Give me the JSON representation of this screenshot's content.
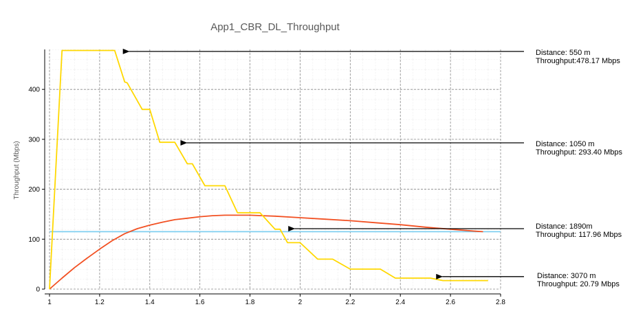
{
  "chart_data": {
    "type": "line",
    "title": "App1_CBR_DL_Throughput",
    "xlabel": "",
    "ylabel": "Throughput (Mbps)",
    "xlim": [
      1,
      2.8
    ],
    "ylim": [
      0,
      480
    ],
    "x_ticks": [
      "1",
      "1.2",
      "1.4",
      "1.6",
      "1.8",
      "2",
      "2.2",
      "2.4",
      "2.6",
      "2.8"
    ],
    "y_ticks": [
      "0",
      "100",
      "200",
      "300",
      "400"
    ],
    "grid": true,
    "series": [
      {
        "color": "#ffd800",
        "points": [
          [
            1.0,
            0
          ],
          [
            1.05,
            478
          ],
          [
            1.26,
            478
          ],
          [
            1.3,
            415
          ],
          [
            1.31,
            413
          ],
          [
            1.37,
            360
          ],
          [
            1.4,
            360
          ],
          [
            1.44,
            294
          ],
          [
            1.5,
            294
          ],
          [
            1.55,
            251
          ],
          [
            1.57,
            251
          ],
          [
            1.62,
            207
          ],
          [
            1.65,
            207
          ],
          [
            1.7,
            207
          ],
          [
            1.75,
            153
          ],
          [
            1.84,
            153
          ],
          [
            1.9,
            120
          ],
          [
            1.92,
            120
          ],
          [
            1.95,
            93
          ],
          [
            2.0,
            93
          ],
          [
            2.07,
            60
          ],
          [
            2.13,
            60
          ],
          [
            2.2,
            40
          ],
          [
            2.32,
            40
          ],
          [
            2.38,
            22
          ],
          [
            2.52,
            22
          ],
          [
            2.57,
            17
          ],
          [
            2.75,
            17
          ]
        ]
      },
      {
        "color": "#f25022",
        "points": [
          [
            1.0,
            0
          ],
          [
            1.05,
            22
          ],
          [
            1.1,
            43
          ],
          [
            1.15,
            62
          ],
          [
            1.2,
            80
          ],
          [
            1.25,
            97
          ],
          [
            1.3,
            111
          ],
          [
            1.35,
            121
          ],
          [
            1.4,
            128
          ],
          [
            1.45,
            134
          ],
          [
            1.5,
            139
          ],
          [
            1.55,
            142
          ],
          [
            1.6,
            145
          ],
          [
            1.65,
            147
          ],
          [
            1.7,
            148
          ],
          [
            1.8,
            148
          ],
          [
            1.85,
            147
          ],
          [
            1.9,
            146
          ],
          [
            2.0,
            143
          ],
          [
            2.1,
            140
          ],
          [
            2.2,
            137
          ],
          [
            2.3,
            133
          ],
          [
            2.4,
            129
          ],
          [
            2.5,
            124
          ],
          [
            2.6,
            120
          ],
          [
            2.7,
            116
          ],
          [
            2.73,
            115
          ]
        ]
      },
      {
        "color": "#7fcff0",
        "points": [
          [
            1.0,
            115
          ],
          [
            2.8,
            115
          ]
        ]
      }
    ],
    "annotations": [
      {
        "line1": "Distance: 550 m",
        "line2": "Throughput:478.17 Mbps",
        "arrow_to": [
          1.29,
          476
        ]
      },
      {
        "line1": "Distance: 1050 m",
        "line2": "Throughput: 293.40 Mbps",
        "arrow_to": [
          1.52,
          293
        ]
      },
      {
        "line1": "Distance: 1890m",
        "line2": "Throughput: 117.96 Mbps",
        "arrow_to": [
          1.95,
          121
        ]
      },
      {
        "line1": "Distance: 3070 m",
        "line2": "Throughput: 20.79 Mbps",
        "arrow_to": [
          2.54,
          25
        ]
      }
    ]
  }
}
